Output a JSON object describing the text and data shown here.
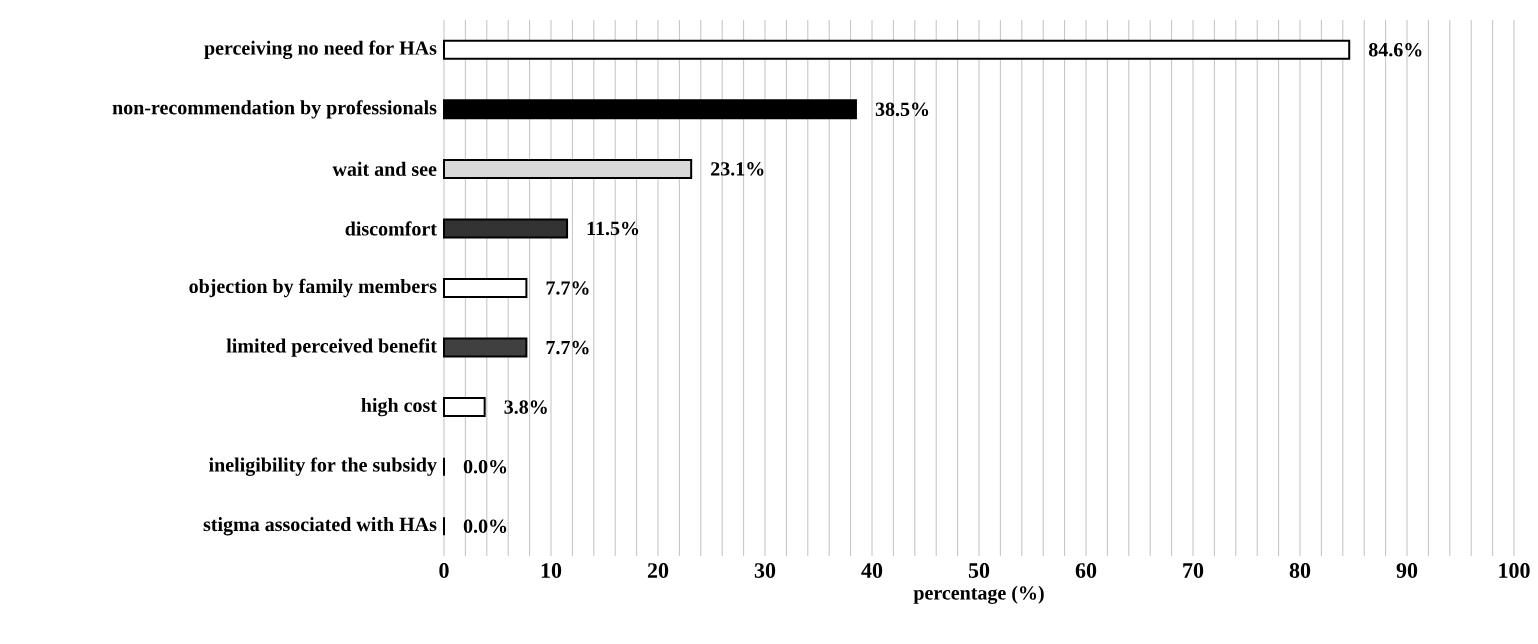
{
  "chart_data": {
    "type": "bar",
    "orientation": "horizontal",
    "xlabel": "percentage (%)",
    "categories": [
      "perceiving no need for HAs",
      "non-recommendation by professionals",
      "wait and see",
      "discomfort",
      "objection by family members",
      "limited perceived benefit",
      "high cost",
      "ineligibility for the subsidy",
      "stigma associated with HAs"
    ],
    "values": [
      84.6,
      38.5,
      23.1,
      11.5,
      7.7,
      7.7,
      3.8,
      0.0,
      0.0
    ],
    "value_labels": [
      "84.6%",
      "38.5%",
      "23.1%",
      "11.5%",
      "7.7%",
      "7.7%",
      "3.8%",
      "0.0%",
      "0.0%"
    ],
    "colors": [
      "#ffffff",
      "#000000",
      "#d9d9d9",
      "#333333",
      "#ffffff",
      "#404040",
      "#ffffff",
      "#ffffff",
      "#ffffff"
    ],
    "xlim": [
      0,
      100
    ],
    "xticks": [
      0,
      {
        "value": 2,
        "label": null
      },
      {
        "value": 4,
        "label": null
      },
      {
        "value": 6,
        "label": null
      },
      {
        "value": 8,
        "label": null
      },
      10,
      {
        "value": 12,
        "label": null
      },
      {
        "value": 14,
        "label": null
      },
      {
        "value": 16,
        "label": null
      },
      {
        "value": 18,
        "label": null
      },
      20,
      {
        "value": 22,
        "label": null
      },
      {
        "value": 24,
        "label": null
      },
      {
        "value": 26,
        "label": null
      },
      {
        "value": 28,
        "label": null
      },
      30,
      {
        "value": 32,
        "label": null
      },
      {
        "value": 34,
        "label": null
      },
      {
        "value": 36,
        "label": null
      },
      {
        "value": 38,
        "label": null
      },
      40,
      {
        "value": 42,
        "label": null
      },
      {
        "value": 44,
        "label": null
      },
      {
        "value": 46,
        "label": null
      },
      {
        "value": 48,
        "label": null
      },
      50,
      {
        "value": 52,
        "label": null
      },
      {
        "value": 54,
        "label": null
      },
      {
        "value": 56,
        "label": null
      },
      {
        "value": 58,
        "label": null
      },
      60,
      {
        "value": 62,
        "label": null
      },
      {
        "value": 64,
        "label": null
      },
      {
        "value": 66,
        "label": null
      },
      {
        "value": 68,
        "label": null
      },
      70,
      {
        "value": 72,
        "label": null
      },
      {
        "value": 74,
        "label": null
      },
      {
        "value": 76,
        "label": null
      },
      {
        "value": 78,
        "label": null
      },
      80,
      {
        "value": 82,
        "label": null
      },
      {
        "value": 84,
        "label": null
      },
      {
        "value": 86,
        "label": null
      },
      {
        "value": 88,
        "label": null
      },
      90,
      {
        "value": 92,
        "label": null
      },
      {
        "value": 94,
        "label": null
      },
      {
        "value": 96,
        "label": null
      },
      {
        "value": 98,
        "label": null
      },
      100
    ],
    "grid": "x"
  }
}
